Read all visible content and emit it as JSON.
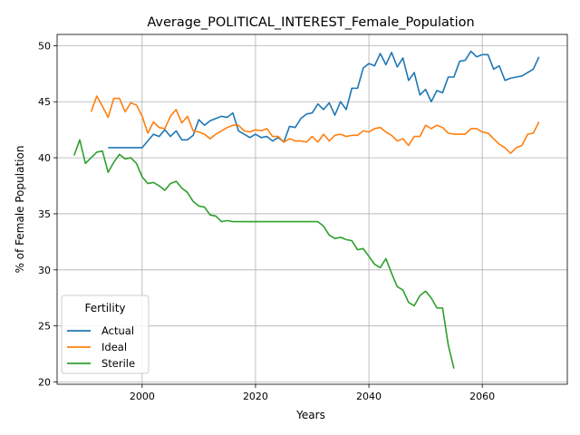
{
  "chart_data": {
    "type": "line",
    "title": "Average_POLITICAL_INTEREST_Female_Population",
    "xlabel": "Years",
    "ylabel": "% of Female Population",
    "xlim": [
      1985,
      2075
    ],
    "ylim": [
      19.8,
      51.0
    ],
    "xticks": [
      2000,
      2020,
      2040,
      2060
    ],
    "yticks": [
      20,
      25,
      30,
      35,
      40,
      45,
      50
    ],
    "xtick_labels": [
      "2000",
      "2020",
      "2040",
      "2060"
    ],
    "ytick_labels": [
      "20",
      "25",
      "30",
      "35",
      "40",
      "45",
      "50"
    ],
    "grid": true,
    "legend": {
      "title": "Fertility",
      "position": "lower-left"
    },
    "series": [
      {
        "name": "Actual",
        "color": "#1f77b4",
        "x": [
          1994,
          1995,
          1996,
          1997,
          1998,
          1999,
          2000,
          2001,
          2002,
          2003,
          2004,
          2005,
          2006,
          2007,
          2008,
          2009,
          2010,
          2011,
          2012,
          2013,
          2014,
          2015,
          2016,
          2017,
          2018,
          2019,
          2020,
          2021,
          2022,
          2023,
          2024,
          2025,
          2026,
          2027,
          2028,
          2029,
          2030,
          2031,
          2032,
          2033,
          2034,
          2035,
          2036,
          2037,
          2038,
          2039,
          2040,
          2041,
          2042,
          2043,
          2044,
          2045,
          2046,
          2047,
          2048,
          2049,
          2050,
          2051,
          2052,
          2053,
          2054,
          2055,
          2056,
          2057,
          2058,
          2059,
          2060,
          2061,
          2062,
          2063,
          2064,
          2065,
          2066,
          2067,
          2068,
          2069,
          2070
        ],
        "y": [
          40.9,
          40.9,
          40.9,
          40.9,
          40.9,
          40.9,
          40.9,
          41.5,
          42.1,
          41.9,
          42.5,
          41.9,
          42.4,
          41.6,
          41.6,
          42.0,
          43.4,
          42.9,
          43.3,
          43.5,
          43.7,
          43.6,
          44.0,
          42.4,
          42.1,
          41.8,
          42.1,
          41.8,
          41.9,
          41.5,
          41.8,
          41.4,
          42.8,
          42.7,
          43.5,
          43.9,
          44.0,
          44.8,
          44.3,
          44.9,
          43.8,
          45.0,
          44.3,
          46.2,
          46.2,
          48.0,
          48.4,
          48.2,
          49.3,
          48.3,
          49.4,
          48.1,
          48.9,
          46.9,
          47.6,
          45.6,
          46.1,
          45.0,
          46.0,
          45.8,
          47.2,
          47.2,
          48.6,
          48.7,
          49.5,
          49.0,
          49.2,
          49.2,
          47.9,
          48.2,
          46.9,
          47.1,
          47.2,
          47.3,
          47.6,
          47.9,
          49.0
        ]
      },
      {
        "name": "Ideal",
        "color": "#ff7f0e",
        "x": [
          1991,
          1992,
          1993,
          1994,
          1995,
          1996,
          1997,
          1998,
          1999,
          2000,
          2001,
          2002,
          2003,
          2004,
          2005,
          2006,
          2007,
          2008,
          2009,
          2010,
          2011,
          2012,
          2013,
          2014,
          2015,
          2016,
          2017,
          2018,
          2019,
          2020,
          2021,
          2022,
          2023,
          2024,
          2025,
          2026,
          2027,
          2028,
          2029,
          2030,
          2031,
          2032,
          2033,
          2034,
          2035,
          2036,
          2037,
          2038,
          2039,
          2040,
          2041,
          2042,
          2043,
          2044,
          2045,
          2046,
          2047,
          2048,
          2049,
          2050,
          2051,
          2052,
          2053,
          2054,
          2055,
          2056,
          2057,
          2058,
          2059,
          2060,
          2061,
          2062,
          2063,
          2064,
          2065,
          2066,
          2067,
          2068,
          2069,
          2070
        ],
        "y": [
          44.1,
          45.5,
          44.6,
          43.6,
          45.3,
          45.3,
          44.1,
          44.9,
          44.7,
          43.7,
          42.2,
          43.2,
          42.7,
          42.6,
          43.7,
          44.3,
          43.1,
          43.7,
          42.4,
          42.3,
          42.1,
          41.7,
          42.1,
          42.4,
          42.7,
          42.9,
          42.9,
          42.4,
          42.3,
          42.5,
          42.4,
          42.6,
          41.9,
          41.9,
          41.4,
          41.7,
          41.5,
          41.5,
          41.4,
          41.9,
          41.4,
          42.1,
          41.5,
          42.0,
          42.1,
          41.9,
          42.0,
          42.0,
          42.4,
          42.3,
          42.6,
          42.7,
          42.3,
          42.0,
          41.5,
          41.7,
          41.1,
          41.9,
          41.9,
          42.9,
          42.6,
          42.9,
          42.7,
          42.2,
          42.1,
          42.1,
          42.1,
          42.6,
          42.6,
          42.3,
          42.2,
          41.7,
          41.2,
          40.9,
          40.4,
          40.9,
          41.1,
          42.1,
          42.2,
          43.2
        ]
      },
      {
        "name": "Sterile",
        "color": "#2ca02c",
        "x": [
          1988,
          1989,
          1990,
          1991,
          1992,
          1993,
          1994,
          1995,
          1996,
          1997,
          1998,
          1999,
          2000,
          2001,
          2002,
          2003,
          2004,
          2005,
          2006,
          2007,
          2008,
          2009,
          2010,
          2011,
          2012,
          2013,
          2014,
          2015,
          2016,
          2017,
          2018,
          2019,
          2020,
          2021,
          2022,
          2023,
          2024,
          2025,
          2026,
          2027,
          2028,
          2029,
          2030,
          2031,
          2032,
          2033,
          2034,
          2035,
          2036,
          2037,
          2038,
          2039,
          2040,
          2041,
          2042,
          2043,
          2044,
          2045,
          2046,
          2047,
          2048,
          2049,
          2050,
          2051,
          2052,
          2053,
          2054,
          2055
        ],
        "y": [
          40.2,
          41.6,
          39.5,
          40.0,
          40.5,
          40.6,
          38.7,
          39.6,
          40.3,
          39.9,
          40.0,
          39.5,
          38.3,
          37.7,
          37.8,
          37.5,
          37.1,
          37.7,
          37.9,
          37.3,
          36.9,
          36.1,
          35.7,
          35.6,
          34.9,
          34.8,
          34.3,
          34.4,
          34.3,
          34.3,
          34.3,
          34.3,
          34.3,
          34.3,
          34.3,
          34.3,
          34.3,
          34.3,
          34.3,
          34.3,
          34.3,
          34.3,
          34.3,
          34.3,
          33.9,
          33.1,
          32.8,
          32.9,
          32.7,
          32.6,
          31.8,
          31.9,
          31.2,
          30.5,
          30.2,
          31.0,
          29.7,
          28.5,
          28.2,
          27.1,
          26.8,
          27.7,
          28.1,
          27.5,
          26.6,
          26.6,
          23.3,
          21.2
        ]
      }
    ]
  }
}
